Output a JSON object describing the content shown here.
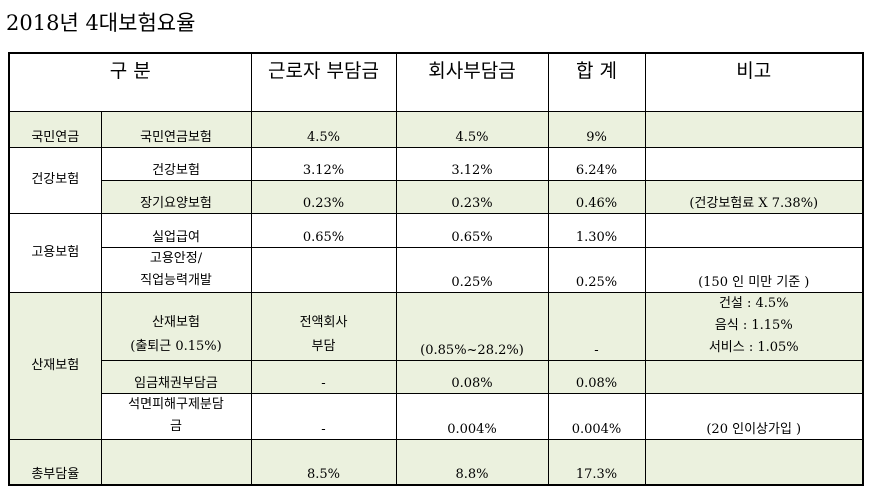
{
  "title": "2018년  4대보험요율",
  "headers": {
    "category": "구  분",
    "worker": "근로자 부담금",
    "company": "회사부담금",
    "total": "합  계",
    "note": "비고"
  },
  "rows": {
    "pension": {
      "group": "국민연금",
      "item": "국민연금보험",
      "worker": "4.5%",
      "company": "4.5%",
      "total": "9%",
      "note": ""
    },
    "health": {
      "group": "건강보험",
      "item": "건강보험",
      "worker": "3.12%",
      "company": "3.12%",
      "total": "6.24%",
      "note": ""
    },
    "ltc": {
      "item": "장기요양보험",
      "worker": "0.23%",
      "company": "0.23%",
      "total": "0.46%",
      "note": "(건강보험료  X  7.38%)"
    },
    "unemployment": {
      "group": "고용보험",
      "item": "실업급여",
      "worker": "0.65%",
      "company": "0.65%",
      "total": "1.30%",
      "note": ""
    },
    "stability": {
      "item_line1": "고용안정/",
      "item_line2": "직업능력개발",
      "worker": "",
      "company": "0.25%",
      "total": "0.25%",
      "note": "(150 인 미만 기준 )"
    },
    "accident": {
      "group": "산재보험",
      "item_line1": "산재보험",
      "item_line2": "(출퇴근 0.15%)",
      "worker_line1": "전액회사",
      "worker_line2": "부담",
      "company": "(0.85%~28.2%)",
      "total": "-",
      "note_line1": "건설 : 4.5%",
      "note_line2": "음식 : 1.15%",
      "note_line3": "서비스 : 1.05%"
    },
    "wage": {
      "item": "임금채권부담금",
      "worker": "-",
      "company": "0.08%",
      "total": "0.08%",
      "note": ""
    },
    "asbestos": {
      "item_line1": "석면피해구제분담",
      "item_line2": "금",
      "worker": "-",
      "company": "0.004%",
      "total": "0.004%",
      "note": "(20 인이상가입 )"
    },
    "total": {
      "group": "총부담율",
      "item": "",
      "worker": "8.5%",
      "company": "8.8%",
      "total": "17.3%",
      "note": ""
    }
  },
  "colors": {
    "green": "#ebf1de",
    "border": "#000000"
  }
}
